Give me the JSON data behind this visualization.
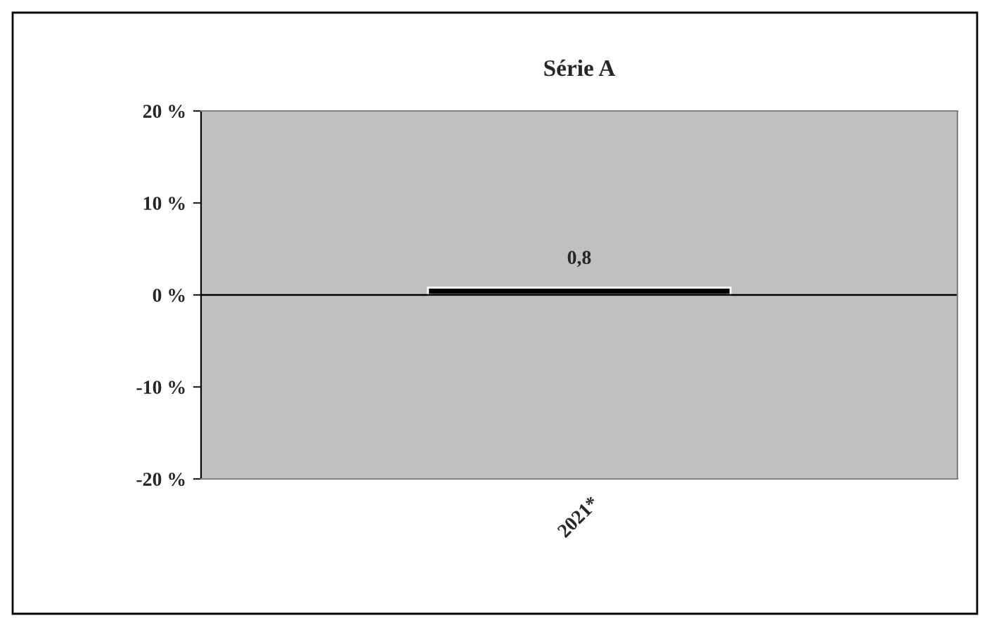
{
  "chart_data": {
    "type": "bar",
    "title": "Série A",
    "categories": [
      "2021*"
    ],
    "series": [
      {
        "color": "#000000",
        "values": [
          0.8
        ]
      }
    ],
    "value_labels": [
      "0,8"
    ],
    "ylim": [
      -20,
      20
    ],
    "yticks": [
      {
        "value": -20,
        "label": "-20 %"
      },
      {
        "value": -10,
        "label": "-10 %"
      },
      {
        "value": 0,
        "label": "0 %"
      },
      {
        "value": 10,
        "label": "10 %"
      },
      {
        "value": 20,
        "label": "20 %"
      }
    ],
    "ref_lines": [
      {
        "axis": "y",
        "value": 0,
        "color": "#000000"
      }
    ],
    "grid": false,
    "legend": false
  }
}
